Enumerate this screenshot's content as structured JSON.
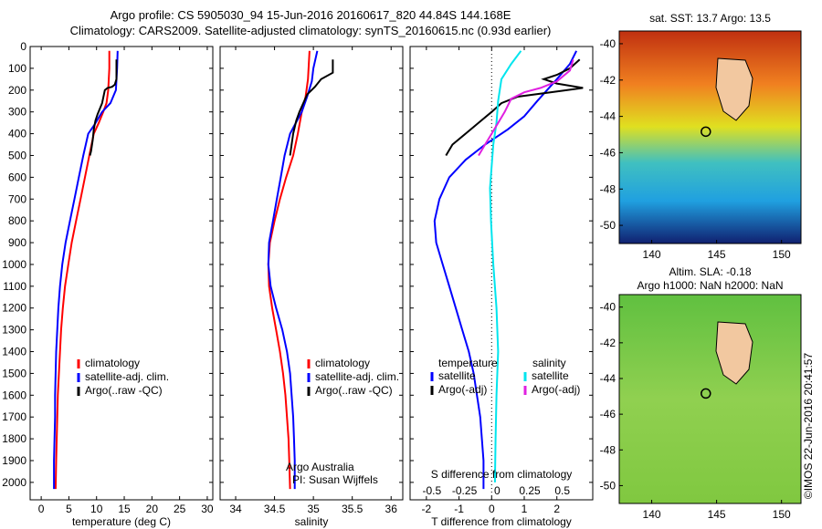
{
  "header": {
    "line1": "Argo profile: CS 5905030_94 15-Jun-2016 20160617_820 44.84S 144.168E",
    "line2": "Climatology: CARS2009. Satellite-adjusted climatology: synTS_20160615.nc (0.93d earlier)"
  },
  "panels": {
    "temp": {
      "xlabel": "temperature (deg C)",
      "legend": [
        "climatology",
        "satellite-adj. clim.",
        "Argo(..raw -QC)"
      ]
    },
    "sal": {
      "xlabel": "salinity",
      "legend": [
        "climatology",
        "satellite-adj. clim.",
        "Argo(..raw -QC)"
      ],
      "credit1": "Argo Australia",
      "credit2": "PI: Susan Wijffels"
    },
    "diff": {
      "xlabel": "T difference from climatology",
      "slabel": "S difference from climatology",
      "legend_left_title": "temperature",
      "legend_left": [
        "satellite",
        "Argo(-adj)"
      ],
      "legend_right_title": "salinity",
      "legend_right": [
        "satellite",
        "Argo(-adj)"
      ]
    },
    "map1": {
      "title": "sat. SST: 13.7 Argo: 13.5"
    },
    "map2": {
      "title1": "Altim. SLA: -0.18",
      "title2": "Argo h1000: NaN h2000: NaN"
    }
  },
  "side_label": "©IMOS 22-Jun-2016 20:41:57",
  "colors": {
    "climatology": "#ff0000",
    "satellite": "#0000ff",
    "argo": "#000000",
    "sal_satellite": "#00e5ee",
    "sal_argo": "#e020e0"
  },
  "chart_data": [
    {
      "type": "line",
      "title": "",
      "xlabel": "temperature (deg C)",
      "ylabel": "",
      "xlim": [
        -2,
        31
      ],
      "ylim": [
        2080,
        0
      ],
      "xticks": [
        0,
        5,
        10,
        15,
        20,
        25,
        30
      ],
      "yticks": [
        0,
        100,
        200,
        300,
        400,
        500,
        600,
        700,
        800,
        900,
        1000,
        1100,
        1200,
        1300,
        1400,
        1500,
        1600,
        1700,
        1800,
        1900,
        2000
      ],
      "series": [
        {
          "name": "climatology",
          "color": "#ff0000",
          "points": [
            [
              12.3,
              20
            ],
            [
              12.3,
              100
            ],
            [
              12.1,
              200
            ],
            [
              11.8,
              260
            ],
            [
              11.2,
              300
            ],
            [
              10.4,
              350
            ],
            [
              9.5,
              400
            ],
            [
              8.7,
              500
            ],
            [
              7.9,
              600
            ],
            [
              7.1,
              700
            ],
            [
              6.3,
              800
            ],
            [
              5.5,
              900
            ],
            [
              4.9,
              1000
            ],
            [
              4.3,
              1100
            ],
            [
              3.9,
              1200
            ],
            [
              3.6,
              1300
            ],
            [
              3.4,
              1400
            ],
            [
              3.2,
              1500
            ],
            [
              3.0,
              1600
            ],
            [
              2.9,
              1700
            ],
            [
              2.8,
              1800
            ],
            [
              2.7,
              1900
            ],
            [
              2.6,
              2030
            ]
          ]
        },
        {
          "name": "satellite-adj. clim.",
          "color": "#0000ff",
          "points": [
            [
              13.8,
              20
            ],
            [
              13.7,
              100
            ],
            [
              13.5,
              200
            ],
            [
              12.5,
              260
            ],
            [
              11.0,
              300
            ],
            [
              9.6,
              360
            ],
            [
              8.5,
              400
            ],
            [
              7.6,
              500
            ],
            [
              6.8,
              600
            ],
            [
              6.0,
              700
            ],
            [
              5.2,
              800
            ],
            [
              4.4,
              900
            ],
            [
              3.8,
              1000
            ],
            [
              3.4,
              1100
            ],
            [
              3.1,
              1200
            ],
            [
              2.9,
              1300
            ],
            [
              2.7,
              1400
            ],
            [
              2.6,
              1500
            ],
            [
              2.5,
              1600
            ],
            [
              2.5,
              1700
            ],
            [
              2.4,
              1800
            ],
            [
              2.3,
              1900
            ],
            [
              2.3,
              2030
            ]
          ]
        },
        {
          "name": "Argo(..raw -QC)",
          "color": "#000000",
          "points": [
            [
              13.6,
              60
            ],
            [
              13.6,
              150
            ],
            [
              13.3,
              175
            ],
            [
              12.8,
              185
            ],
            [
              12.0,
              190
            ],
            [
              11.5,
              200
            ],
            [
              11.0,
              260
            ],
            [
              10.2,
              310
            ],
            [
              9.8,
              340
            ],
            [
              9.5,
              380
            ],
            [
              9.3,
              430
            ],
            [
              9.0,
              480
            ],
            [
              8.8,
              500
            ]
          ]
        }
      ]
    },
    {
      "type": "line",
      "title": "",
      "xlabel": "salinity",
      "ylabel": "",
      "xlim": [
        33.8,
        36.15
      ],
      "ylim": [
        2080,
        0
      ],
      "xticks": [
        34,
        34.5,
        35,
        35.5,
        36
      ],
      "series": [
        {
          "name": "climatology",
          "color": "#ff0000",
          "points": [
            [
              34.95,
              20
            ],
            [
              34.93,
              150
            ],
            [
              34.9,
              230
            ],
            [
              34.85,
              300
            ],
            [
              34.8,
              400
            ],
            [
              34.74,
              500
            ],
            [
              34.65,
              600
            ],
            [
              34.57,
              700
            ],
            [
              34.5,
              800
            ],
            [
              34.44,
              900
            ],
            [
              34.42,
              1000
            ],
            [
              34.43,
              1100
            ],
            [
              34.47,
              1200
            ],
            [
              34.52,
              1300
            ],
            [
              34.57,
              1400
            ],
            [
              34.61,
              1500
            ],
            [
              34.64,
              1600
            ],
            [
              34.66,
              1700
            ],
            [
              34.68,
              1800
            ],
            [
              34.69,
              1900
            ],
            [
              34.7,
              2030
            ]
          ]
        },
        {
          "name": "satellite-adj. clim.",
          "color": "#0000ff",
          "points": [
            [
              35.05,
              20
            ],
            [
              35.0,
              100
            ],
            [
              34.98,
              160
            ],
            [
              34.92,
              230
            ],
            [
              34.85,
              300
            ],
            [
              34.76,
              360
            ],
            [
              34.7,
              400
            ],
            [
              34.63,
              500
            ],
            [
              34.58,
              600
            ],
            [
              34.53,
              700
            ],
            [
              34.48,
              800
            ],
            [
              34.43,
              900
            ],
            [
              34.42,
              1000
            ],
            [
              34.45,
              1100
            ],
            [
              34.52,
              1200
            ],
            [
              34.6,
              1300
            ],
            [
              34.66,
              1400
            ],
            [
              34.7,
              1500
            ],
            [
              34.72,
              1600
            ],
            [
              34.74,
              1700
            ],
            [
              34.75,
              1800
            ],
            [
              34.76,
              1900
            ],
            [
              34.76,
              2030
            ]
          ]
        },
        {
          "name": "Argo(..raw -QC)",
          "color": "#000000",
          "points": [
            [
              35.25,
              60
            ],
            [
              35.25,
              120
            ],
            [
              35.1,
              150
            ],
            [
              35.02,
              185
            ],
            [
              34.92,
              220
            ],
            [
              34.82,
              300
            ],
            [
              34.78,
              340
            ],
            [
              34.74,
              400
            ],
            [
              34.72,
              450
            ],
            [
              34.7,
              500
            ]
          ]
        }
      ]
    },
    {
      "type": "line",
      "title": "",
      "xlabel": "T difference from climatology",
      "ylabel": "",
      "xlim": [
        -2.5,
        3.1
      ],
      "ylim": [
        2080,
        0
      ],
      "xticks": [
        -2,
        -1,
        0,
        1,
        2
      ],
      "secondary_xticks": [
        "-0.5",
        "-0.25",
        "0",
        "0.25",
        "0.5"
      ],
      "series": [
        {
          "name": "temperature satellite",
          "color": "#0000ff",
          "points": [
            [
              2.6,
              20
            ],
            [
              2.4,
              80
            ],
            [
              2.0,
              150
            ],
            [
              1.4,
              250
            ],
            [
              1.0,
              320
            ],
            [
              0.5,
              380
            ],
            [
              -0.2,
              450
            ],
            [
              -0.8,
              520
            ],
            [
              -1.3,
              600
            ],
            [
              -1.6,
              700
            ],
            [
              -1.75,
              800
            ],
            [
              -1.7,
              900
            ],
            [
              -1.5,
              1000
            ],
            [
              -1.3,
              1100
            ],
            [
              -1.1,
              1200
            ],
            [
              -0.9,
              1300
            ],
            [
              -0.7,
              1400
            ],
            [
              -0.55,
              1500
            ],
            [
              -0.45,
              1600
            ],
            [
              -0.35,
              1700
            ],
            [
              -0.3,
              1800
            ],
            [
              -0.25,
              1900
            ],
            [
              -0.25,
              2030
            ]
          ]
        },
        {
          "name": "temperature Argo(-adj)",
          "color": "#000000",
          "points": [
            [
              2.7,
              60
            ],
            [
              2.4,
              100
            ],
            [
              2.0,
              130
            ],
            [
              1.6,
              150
            ],
            [
              2.0,
              170
            ],
            [
              2.8,
              190
            ],
            [
              1.8,
              210
            ],
            [
              0.8,
              230
            ],
            [
              0.3,
              260
            ],
            [
              0.0,
              300
            ],
            [
              -0.4,
              350
            ],
            [
              -0.8,
              400
            ],
            [
              -1.2,
              450
            ],
            [
              -1.4,
              500
            ]
          ]
        },
        {
          "name": "salinity satellite",
          "color": "#00e5ee",
          "points": [
            [
              0.9,
              20
            ],
            [
              0.6,
              80
            ],
            [
              0.3,
              150
            ],
            [
              0.2,
              250
            ],
            [
              0.15,
              350
            ],
            [
              0.05,
              450
            ],
            [
              0.0,
              550
            ],
            [
              -0.05,
              650
            ],
            [
              -0.02,
              800
            ],
            [
              0.05,
              1000
            ],
            [
              0.15,
              1200
            ],
            [
              0.2,
              1400
            ],
            [
              0.15,
              1600
            ],
            [
              0.12,
              1800
            ],
            [
              0.1,
              2000
            ]
          ]
        },
        {
          "name": "salinity Argo(-adj)",
          "color": "#e020e0",
          "points": [
            [
              2.5,
              60
            ],
            [
              2.4,
              110
            ],
            [
              2.0,
              160
            ],
            [
              1.5,
              190
            ],
            [
              1.0,
              210
            ],
            [
              0.6,
              240
            ],
            [
              0.4,
              300
            ],
            [
              0.0,
              400
            ],
            [
              -0.2,
              450
            ],
            [
              -0.4,
              500
            ]
          ]
        }
      ]
    }
  ]
}
